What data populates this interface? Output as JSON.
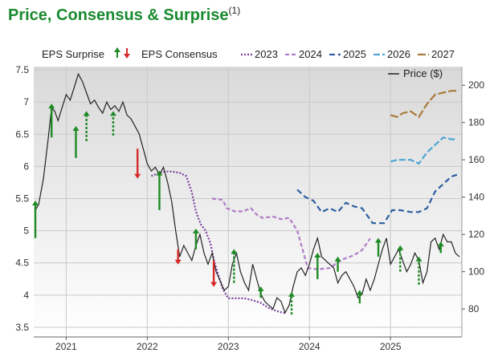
{
  "chart_data": {
    "type": "line",
    "title": "Price, Consensus & Surprise",
    "title_footnote": "(1)",
    "left_axis": {
      "ylim": [
        3.35,
        7.55
      ],
      "ticks": [
        "3.5",
        "4",
        "4.5",
        "5",
        "5.5",
        "6",
        "6.5",
        "7",
        "7.5"
      ]
    },
    "right_axis": {
      "ylim": [
        65,
        210
      ],
      "ticks": [
        "80",
        "100",
        "120",
        "140",
        "160",
        "180",
        "200"
      ]
    },
    "x_ticks": [
      {
        "label": "2021",
        "x": 2021.0
      },
      {
        "label": "2022",
        "x": 2022.0
      },
      {
        "label": "2023",
        "x": 2023.0
      },
      {
        "label": "2024",
        "x": 2024.0
      },
      {
        "label": "2025",
        "x": 2025.0
      }
    ],
    "xlim": [
      2020.6,
      2025.88
    ],
    "legend": {
      "eps_surprise": "EPS Surprise",
      "eps_consensus": "EPS Consensus",
      "price": "Price ($)",
      "years": [
        {
          "label": "2023",
          "color": "#7b3f9e",
          "dash": "2 2"
        },
        {
          "label": "2024",
          "color": "#b07cc6",
          "dash": "5 3"
        },
        {
          "label": "2025",
          "color": "#2e5fa0",
          "dash": "7 4"
        },
        {
          "label": "2026",
          "color": "#4fa6d6",
          "dash": "8 3"
        },
        {
          "label": "2027",
          "color": "#a97b3c",
          "dash": "10 3"
        }
      ]
    },
    "colors": {
      "price": "#222222",
      "up": "#1f8b24",
      "down": "#d62a2a"
    },
    "consensus_series": [
      {
        "name": "2023",
        "color": "#7b3f9e",
        "dash": "2 2",
        "x": [
          2022.05,
          2022.15,
          2022.22,
          2022.3,
          2022.4,
          2022.48,
          2022.55,
          2022.6,
          2022.63,
          2022.66,
          2022.72,
          2022.78,
          2022.83,
          2022.88,
          2022.93,
          2023.0,
          2023.2,
          2023.3,
          2023.4,
          2023.5,
          2023.6,
          2023.7
        ],
        "y": [
          5.85,
          5.9,
          5.92,
          5.92,
          5.9,
          5.85,
          5.6,
          5.3,
          5.2,
          5.1,
          5.0,
          4.8,
          4.5,
          4.3,
          4.1,
          3.95,
          3.95,
          3.92,
          3.88,
          3.8,
          3.75,
          3.72
        ]
      },
      {
        "name": "2024",
        "color": "#b07cc6",
        "dash": "5 3",
        "x": [
          2022.8,
          2022.93,
          2022.98,
          2023.08,
          2023.18,
          2023.28,
          2023.35,
          2023.42,
          2023.55,
          2023.65,
          2023.75,
          2023.85,
          2023.98,
          2024.1,
          2024.25,
          2024.4,
          2024.55,
          2024.65,
          2024.75
        ],
        "y": [
          5.5,
          5.48,
          5.35,
          5.3,
          5.3,
          5.35,
          5.25,
          5.2,
          5.22,
          5.18,
          5.2,
          5.0,
          4.42,
          4.4,
          4.42,
          4.55,
          4.62,
          4.7,
          4.88
        ]
      },
      {
        "name": "2025",
        "color": "#2e5fa0",
        "dash": "7 4",
        "x": [
          2023.85,
          2023.95,
          2024.05,
          2024.15,
          2024.25,
          2024.35,
          2024.45,
          2024.55,
          2024.65,
          2024.78,
          2024.92,
          2025.02,
          2025.12,
          2025.25,
          2025.35,
          2025.45,
          2025.55,
          2025.65,
          2025.75,
          2025.82
        ],
        "y": [
          144,
          140,
          138,
          132,
          134,
          132,
          137,
          135,
          134,
          126,
          126,
          133,
          133,
          132,
          132,
          134,
          143,
          147,
          151,
          152
        ]
      },
      {
        "name": "2026",
        "color": "#4fa6d6",
        "dash": "8 3",
        "x": [
          2025.0,
          2025.08,
          2025.15,
          2025.25,
          2025.35,
          2025.45,
          2025.55,
          2025.65,
          2025.75,
          2025.82
        ],
        "y": [
          159,
          160,
          160,
          160,
          158,
          164,
          168,
          172,
          171,
          171
        ]
      },
      {
        "name": "2027",
        "color": "#a97b3c",
        "dash": "10 3",
        "x": [
          2025.0,
          2025.08,
          2025.15,
          2025.25,
          2025.35,
          2025.45,
          2025.55,
          2025.65,
          2025.75,
          2025.82
        ],
        "y": [
          184,
          183,
          185,
          186,
          183,
          190,
          195,
          196,
          197,
          197
        ]
      }
    ],
    "price": {
      "name": "Price ($)",
      "x": [
        2020.62,
        2020.66,
        2020.72,
        2020.78,
        2020.82,
        2020.86,
        2020.9,
        2020.95,
        2021.0,
        2021.05,
        2021.1,
        2021.15,
        2021.2,
        2021.25,
        2021.3,
        2021.35,
        2021.4,
        2021.45,
        2021.5,
        2021.55,
        2021.6,
        2021.65,
        2021.7,
        2021.75,
        2021.8,
        2021.85,
        2021.9,
        2021.95,
        2022.0,
        2022.05,
        2022.1,
        2022.15,
        2022.2,
        2022.25,
        2022.3,
        2022.35,
        2022.4,
        2022.45,
        2022.5,
        2022.55,
        2022.6,
        2022.65,
        2022.7,
        2022.75,
        2022.8,
        2022.85,
        2022.9,
        2022.95,
        2023.0,
        2023.05,
        2023.1,
        2023.15,
        2023.2,
        2023.25,
        2023.3,
        2023.35,
        2023.4,
        2023.45,
        2023.5,
        2023.55,
        2023.6,
        2023.65,
        2023.7,
        2023.75,
        2023.8,
        2023.85,
        2023.9,
        2023.95,
        2024.0,
        2024.05,
        2024.1,
        2024.15,
        2024.2,
        2024.25,
        2024.3,
        2024.35,
        2024.4,
        2024.45,
        2024.5,
        2024.55,
        2024.6,
        2024.65,
        2024.7,
        2024.75,
        2024.8,
        2024.85,
        2024.9,
        2024.95,
        2025.0,
        2025.05,
        2025.1,
        2025.15,
        2025.2,
        2025.25,
        2025.3,
        2025.35,
        2025.4,
        2025.45,
        2025.5,
        2025.55,
        2025.6,
        2025.65,
        2025.7,
        2025.75,
        2025.8,
        2025.85
      ],
      "y": [
        133,
        136,
        150,
        172,
        188,
        186,
        181,
        188,
        195,
        192,
        199,
        206,
        202,
        196,
        190,
        192,
        188,
        185,
        191,
        187,
        189,
        186,
        191,
        184,
        182,
        178,
        174,
        166,
        158,
        154,
        156,
        152,
        156,
        148,
        138,
        122,
        108,
        114,
        110,
        106,
        114,
        120,
        110,
        104,
        110,
        100,
        95,
        90,
        92,
        104,
        110,
        100,
        94,
        90,
        104,
        96,
        88,
        84,
        82,
        80,
        86,
        84,
        78,
        82,
        92,
        100,
        102,
        98,
        104,
        112,
        118,
        108,
        106,
        104,
        102,
        94,
        98,
        100,
        96,
        92,
        86,
        88,
        96,
        90,
        96,
        104,
        112,
        118,
        104,
        108,
        112,
        106,
        100,
        104,
        110,
        106,
        94,
        100,
        116,
        118,
        112,
        120,
        116,
        116,
        110,
        108
      ]
    },
    "surprises": [
      {
        "x": 2020.62,
        "y_from": 118,
        "y_to": 136,
        "dir": "up",
        "style": "solid"
      },
      {
        "x": 2020.82,
        "y_from": 172,
        "y_to": 188,
        "dir": "up",
        "style": "solid"
      },
      {
        "x": 2021.12,
        "y_from": 161,
        "y_to": 176,
        "dir": "up",
        "style": "solid"
      },
      {
        "x": 2021.25,
        "y_from": 170,
        "y_to": 184,
        "dir": "up",
        "style": "dashed"
      },
      {
        "x": 2021.58,
        "y_from": 173,
        "y_to": 184,
        "dir": "up",
        "style": "dashed"
      },
      {
        "x": 2021.88,
        "y_from": 166,
        "y_to": 152,
        "dir": "down",
        "style": "solid"
      },
      {
        "x": 2022.15,
        "y_from": 133,
        "y_to": 152,
        "dir": "up",
        "style": "solid"
      },
      {
        "x": 2022.38,
        "y_from": 112,
        "y_to": 106,
        "dir": "down",
        "style": "solid"
      },
      {
        "x": 2022.6,
        "y_from": 112,
        "y_to": 121,
        "dir": "up",
        "style": "solid"
      },
      {
        "x": 2022.82,
        "y_from": 106,
        "y_to": 94,
        "dir": "down",
        "style": "solid"
      },
      {
        "x": 2023.07,
        "y_from": 94,
        "y_to": 110,
        "dir": "up",
        "style": "dashed"
      },
      {
        "x": 2023.4,
        "y_from": 86,
        "y_to": 90,
        "dir": "up",
        "style": "solid"
      },
      {
        "x": 2023.78,
        "y_from": 77,
        "y_to": 87,
        "dir": "up",
        "style": "dashed"
      },
      {
        "x": 2024.1,
        "y_from": 96,
        "y_to": 108,
        "dir": "up",
        "style": "solid"
      },
      {
        "x": 2024.35,
        "y_from": 100,
        "y_to": 106,
        "dir": "up",
        "style": "solid"
      },
      {
        "x": 2024.62,
        "y_from": 83,
        "y_to": 88,
        "dir": "up",
        "style": "solid"
      },
      {
        "x": 2024.85,
        "y_from": 108,
        "y_to": 116,
        "dir": "up",
        "style": "solid"
      },
      {
        "x": 2025.12,
        "y_from": 100,
        "y_to": 112,
        "dir": "up",
        "style": "dashed"
      },
      {
        "x": 2025.35,
        "y_from": 93,
        "y_to": 106,
        "dir": "up",
        "style": "dashed"
      },
      {
        "x": 2025.62,
        "y_from": 110,
        "y_to": 114,
        "dir": "up",
        "style": "solid"
      }
    ]
  }
}
